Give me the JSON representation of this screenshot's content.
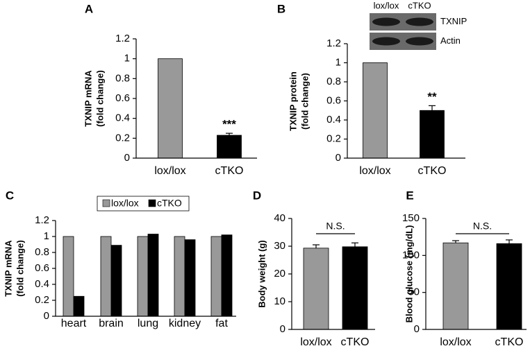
{
  "chart_data": [
    {
      "type": "bar",
      "panel_label": "A",
      "ylabel": [
        "TXNIP mRNA",
        "(fold change)"
      ],
      "categories": [
        "lox/lox",
        "cTKO"
      ],
      "values": [
        1,
        0.23
      ],
      "errors": [
        null,
        0.02
      ],
      "colors": [
        "#999999",
        "#000000"
      ],
      "value_annotations": [
        null,
        "***"
      ],
      "ylim": [
        0,
        1.2
      ],
      "yticks": [
        0,
        0.2,
        0.4,
        0.6,
        0.8,
        1,
        1.2
      ]
    },
    {
      "type": "bar",
      "panel_label": "B",
      "ylabel": [
        "TXNIP protein",
        "(fold change)"
      ],
      "categories": [
        "lox/lox",
        "cTKO"
      ],
      "values": [
        1,
        0.5
      ],
      "errors": [
        null,
        0.05
      ],
      "colors": [
        "#999999",
        "#000000"
      ],
      "value_annotations": [
        null,
        "**"
      ],
      "blot": {
        "lanes": [
          "lox/lox",
          "cTKO"
        ],
        "bands": [
          "TXNIP",
          "Actin"
        ]
      },
      "ylim": [
        0,
        1.2
      ],
      "yticks": [
        0,
        0.2,
        0.4,
        0.6,
        0.8,
        1,
        1.2
      ]
    },
    {
      "type": "grouped-bar",
      "panel_label": "C",
      "ylabel": [
        "TXNIP mRNA",
        "(fold change)"
      ],
      "categories": [
        "heart",
        "brain",
        "lung",
        "kidney",
        "fat"
      ],
      "series": [
        {
          "name": "lox/lox",
          "color": "#999999",
          "values": [
            1,
            1,
            1,
            1,
            1
          ]
        },
        {
          "name": "cTKO",
          "color": "#000000",
          "values": [
            0.25,
            0.89,
            1.03,
            0.96,
            1.02
          ]
        }
      ],
      "legend": "top",
      "ylim": [
        0,
        1.2
      ],
      "yticks": [
        0,
        0.2,
        0.4,
        0.6,
        0.8,
        1,
        1.2
      ]
    },
    {
      "type": "bar",
      "panel_label": "D",
      "ylabel": [
        "Body weight (g)"
      ],
      "categories": [
        "lox/lox",
        "cTKO"
      ],
      "values": [
        29.3,
        29.8
      ],
      "errors": [
        1.2,
        1.4
      ],
      "colors": [
        "#999999",
        "#000000"
      ],
      "comparison_label": "N.S.",
      "ylim": [
        0,
        40
      ],
      "yticks": [
        0,
        10,
        20,
        30,
        40
      ]
    },
    {
      "type": "bar",
      "panel_label": "E",
      "ylabel": [
        "Blood glucose (mg/dL)"
      ],
      "categories": [
        "lox/lox",
        "cTKO"
      ],
      "values": [
        117,
        116
      ],
      "errors": [
        3,
        5
      ],
      "colors": [
        "#999999",
        "#000000"
      ],
      "comparison_label": "N.S.",
      "ylim": [
        0,
        150
      ],
      "yticks": [
        0,
        50,
        100,
        150
      ]
    }
  ]
}
